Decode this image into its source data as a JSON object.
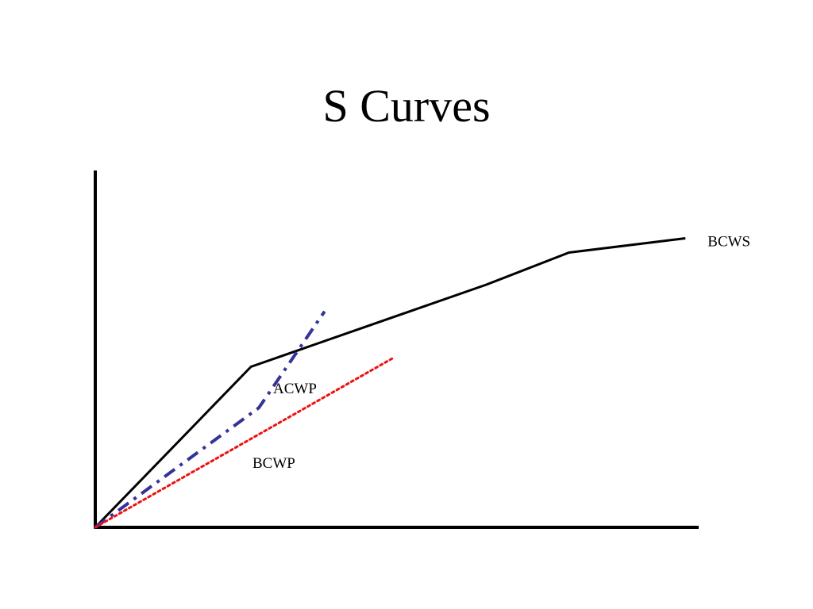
{
  "slide": {
    "title": "S Curves"
  },
  "chart_data": {
    "type": "line",
    "title": "S Curves",
    "xlabel": "",
    "ylabel": "",
    "xlim": [
      0,
      100
    ],
    "ylim": [
      0,
      100
    ],
    "axis_ticks": false,
    "grid": false,
    "legend": "none",
    "series": [
      {
        "name": "BCWS",
        "color": "#000000",
        "style": "solid",
        "x": [
          0,
          25.8,
          64.8,
          78.5,
          97.8
        ],
        "y": [
          0,
          45,
          68,
          77,
          81
        ]
      },
      {
        "name": "ACWP",
        "color": "#333399",
        "style": "dash-dot",
        "x": [
          0,
          27.1,
          38.0
        ],
        "y": [
          0,
          33.5,
          60.5
        ]
      },
      {
        "name": "BCWP",
        "color": "#ee1111",
        "style": "dotted",
        "x": [
          0,
          49.4
        ],
        "y": [
          0,
          47.5
        ]
      }
    ]
  }
}
